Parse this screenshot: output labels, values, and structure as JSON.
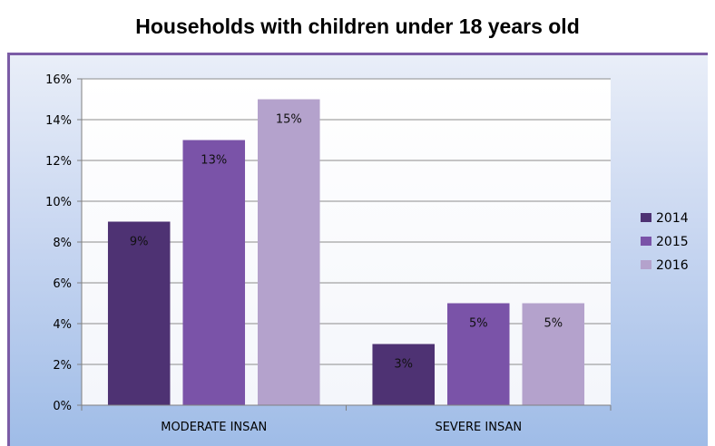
{
  "chart_data": {
    "type": "bar",
    "title": "Households with children under 18 years old",
    "categories": [
      "MODERATE INSAN",
      "SEVERE INSAN"
    ],
    "series": [
      {
        "name": "2014",
        "values": [
          9,
          3
        ],
        "labels": [
          "9%",
          "3%"
        ],
        "color": "#4e3273"
      },
      {
        "name": "2015",
        "values": [
          13,
          5
        ],
        "labels": [
          "13%",
          "5%"
        ],
        "color": "#7a53a8"
      },
      {
        "name": "2016",
        "values": [
          15,
          5
        ],
        "labels": [
          "15%",
          "5%"
        ],
        "color": "#b4a2cc"
      }
    ],
    "ylim": [
      0,
      16
    ],
    "yticks": [
      "0%",
      "2%",
      "4%",
      "6%",
      "8%",
      "10%",
      "12%",
      "14%",
      "16%"
    ],
    "xlabel": "",
    "ylabel": "",
    "grid": true,
    "legend": "right"
  }
}
